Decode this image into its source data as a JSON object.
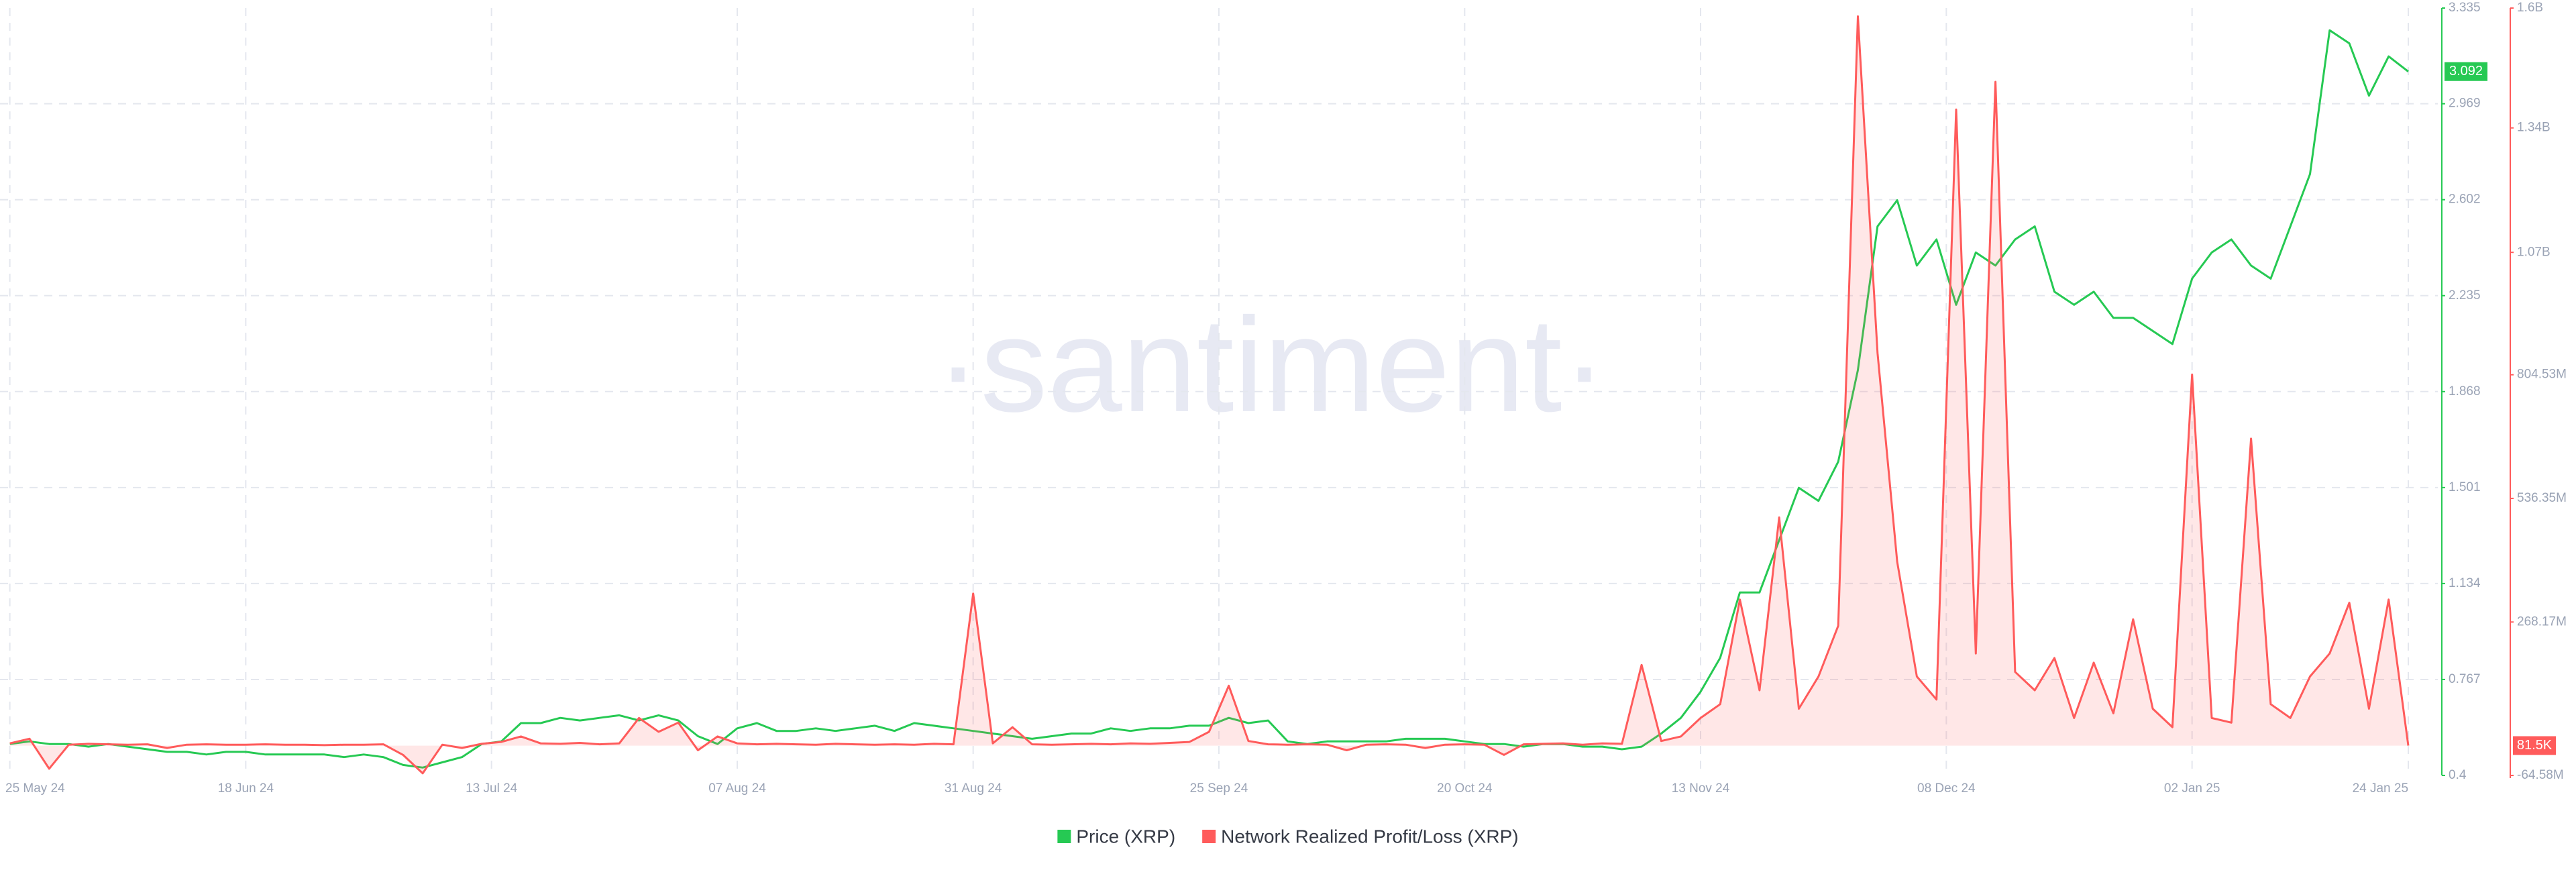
{
  "chart_data": {
    "type": "line",
    "watermark": "·santiment·",
    "x": [
      "2024-05-25",
      "2024-05-27",
      "2024-05-29",
      "2024-05-31",
      "2024-06-02",
      "2024-06-04",
      "2024-06-06",
      "2024-06-08",
      "2024-06-10",
      "2024-06-12",
      "2024-06-14",
      "2024-06-16",
      "2024-06-18",
      "2024-06-20",
      "2024-06-22",
      "2024-06-24",
      "2024-06-26",
      "2024-06-28",
      "2024-06-30",
      "2024-07-02",
      "2024-07-04",
      "2024-07-06",
      "2024-07-08",
      "2024-07-10",
      "2024-07-12",
      "2024-07-14",
      "2024-07-16",
      "2024-07-18",
      "2024-07-20",
      "2024-07-22",
      "2024-07-24",
      "2024-07-26",
      "2024-07-28",
      "2024-07-30",
      "2024-08-01",
      "2024-08-03",
      "2024-08-05",
      "2024-08-07",
      "2024-08-09",
      "2024-08-11",
      "2024-08-13",
      "2024-08-15",
      "2024-08-17",
      "2024-08-19",
      "2024-08-21",
      "2024-08-23",
      "2024-08-25",
      "2024-08-27",
      "2024-08-29",
      "2024-08-31",
      "2024-09-02",
      "2024-09-04",
      "2024-09-06",
      "2024-09-08",
      "2024-09-10",
      "2024-09-12",
      "2024-09-14",
      "2024-09-16",
      "2024-09-18",
      "2024-09-20",
      "2024-09-22",
      "2024-09-24",
      "2024-09-26",
      "2024-09-28",
      "2024-09-30",
      "2024-10-02",
      "2024-10-04",
      "2024-10-06",
      "2024-10-08",
      "2024-10-10",
      "2024-10-12",
      "2024-10-14",
      "2024-10-16",
      "2024-10-18",
      "2024-10-20",
      "2024-10-22",
      "2024-10-24",
      "2024-10-26",
      "2024-10-28",
      "2024-10-30",
      "2024-11-01",
      "2024-11-03",
      "2024-11-05",
      "2024-11-07",
      "2024-11-09",
      "2024-11-11",
      "2024-11-13",
      "2024-11-15",
      "2024-11-17",
      "2024-11-19",
      "2024-11-21",
      "2024-11-23",
      "2024-11-25",
      "2024-11-27",
      "2024-11-29",
      "2024-12-01",
      "2024-12-03",
      "2024-12-05",
      "2024-12-07",
      "2024-12-09",
      "2024-12-11",
      "2024-12-13",
      "2024-12-15",
      "2024-12-17",
      "2024-12-19",
      "2024-12-21",
      "2024-12-23",
      "2024-12-25",
      "2024-12-27",
      "2024-12-29",
      "2024-12-31",
      "2025-01-02",
      "2025-01-04",
      "2025-01-06",
      "2025-01-08",
      "2025-01-10",
      "2025-01-12",
      "2025-01-14",
      "2025-01-16",
      "2025-01-18",
      "2025-01-20",
      "2025-01-22",
      "2025-01-24"
    ],
    "xlim": [
      "2024-05-24",
      "2025-01-27"
    ],
    "xticks": [
      {
        "value": "2024-05-25",
        "label": "25 May 24"
      },
      {
        "value": "2024-06-18",
        "label": "18 Jun 24"
      },
      {
        "value": "2024-07-13",
        "label": "13 Jul 24"
      },
      {
        "value": "2024-08-07",
        "label": "07 Aug 24"
      },
      {
        "value": "2024-08-31",
        "label": "31 Aug 24"
      },
      {
        "value": "2024-09-25",
        "label": "25 Sep 24"
      },
      {
        "value": "2024-10-20",
        "label": "20 Oct 24"
      },
      {
        "value": "2024-11-13",
        "label": "13 Nov 24"
      },
      {
        "value": "2024-12-08",
        "label": "08 Dec 24"
      },
      {
        "value": "2025-01-02",
        "label": "02 Jan 25"
      },
      {
        "value": "2025-01-24",
        "label": "24 Jan 25"
      }
    ],
    "ylim": [
      0.4,
      3.335
    ],
    "yticks": [
      0.4,
      0.767,
      1.134,
      1.501,
      1.868,
      2.235,
      2.602,
      2.969,
      3.335
    ],
    "y2lim": [
      -64580000,
      1600000000
    ],
    "y2ticks": [
      {
        "value": -64580000,
        "label": "-64.58M"
      },
      {
        "value": 268170000,
        "label": "268.17M"
      },
      {
        "value": 536350000,
        "label": "536.35M"
      },
      {
        "value": 804530000,
        "label": "804.53M"
      },
      {
        "value": 1070000000,
        "label": "1.07B"
      },
      {
        "value": 1340000000,
        "label": "1.34B"
      },
      {
        "value": 1600000000,
        "label": "1.6B"
      }
    ],
    "grid": true,
    "legend": "bottom",
    "series": [
      {
        "name": "Price (XRP)",
        "color": "#26c953",
        "last_label": "3.092",
        "values": [
          0.52,
          0.53,
          0.52,
          0.52,
          0.51,
          0.52,
          0.51,
          0.5,
          0.49,
          0.49,
          0.48,
          0.49,
          0.49,
          0.48,
          0.48,
          0.48,
          0.48,
          0.47,
          0.48,
          0.47,
          0.44,
          0.43,
          0.45,
          0.47,
          0.52,
          0.53,
          0.6,
          0.6,
          0.62,
          0.61,
          0.62,
          0.63,
          0.61,
          0.63,
          0.61,
          0.55,
          0.52,
          0.58,
          0.6,
          0.57,
          0.57,
          0.58,
          0.57,
          0.58,
          0.59,
          0.57,
          0.6,
          0.59,
          0.58,
          0.57,
          0.56,
          0.55,
          0.54,
          0.55,
          0.56,
          0.56,
          0.58,
          0.57,
          0.58,
          0.58,
          0.59,
          0.59,
          0.62,
          0.6,
          0.61,
          0.53,
          0.52,
          0.53,
          0.53,
          0.53,
          0.53,
          0.54,
          0.54,
          0.54,
          0.53,
          0.52,
          0.52,
          0.51,
          0.52,
          0.52,
          0.51,
          0.51,
          0.5,
          0.51,
          0.56,
          0.62,
          0.72,
          0.85,
          1.1,
          1.1,
          1.3,
          1.5,
          1.45,
          1.6,
          1.95,
          2.5,
          2.6,
          2.35,
          2.45,
          2.2,
          2.4,
          2.35,
          2.45,
          2.5,
          2.25,
          2.2,
          2.25,
          2.15,
          2.15,
          2.1,
          2.05,
          2.3,
          2.4,
          2.45,
          2.35,
          2.3,
          2.5,
          2.7,
          3.25,
          3.2,
          3.0,
          3.15,
          3.092
        ]
      },
      {
        "name": "Network Realized Profit/Loss (XRP)",
        "color": "#ff5b5b",
        "axis": "y2",
        "last_label": "81.5K",
        "values": [
          5000000,
          15000000,
          -50000000,
          2000000,
          4000000,
          3000000,
          2000000,
          3000000,
          -5000000,
          2000000,
          3000000,
          2000000,
          2000000,
          3000000,
          2000000,
          2000000,
          1000000,
          2000000,
          2000000,
          3000000,
          -20000000,
          -60000000,
          2000000,
          -5000000,
          4000000,
          8000000,
          20000000,
          5000000,
          4000000,
          6000000,
          3000000,
          5000000,
          60000000,
          30000000,
          50000000,
          -10000000,
          20000000,
          5000000,
          3000000,
          4000000,
          3000000,
          2000000,
          4000000,
          3000000,
          2000000,
          3000000,
          2000000,
          4000000,
          3000000,
          330000000,
          5000000,
          40000000,
          3000000,
          2000000,
          3000000,
          4000000,
          3000000,
          5000000,
          4000000,
          6000000,
          8000000,
          30000000,
          130000000,
          10000000,
          3000000,
          2000000,
          3000000,
          2000000,
          -10000000,
          2000000,
          3000000,
          2000000,
          -5000000,
          2000000,
          3000000,
          2000000,
          -20000000,
          3000000,
          4000000,
          5000000,
          2000000,
          5000000,
          4000000,
          175000000,
          10000000,
          20000000,
          60000000,
          90000000,
          317000000,
          120000000,
          495000000,
          80000000,
          150000000,
          260000000,
          1582000000,
          852000000,
          399000000,
          150000000,
          100000000,
          1380000000,
          200000000,
          1440000000,
          160000000,
          120000000,
          190000000,
          60000000,
          180000000,
          70000000,
          274000000,
          80000000,
          40000000,
          805000000,
          60000000,
          50000000,
          666000000,
          90000000,
          60000000,
          150000000,
          200000000,
          310000000,
          80000000,
          317000000,
          81500
        ]
      }
    ]
  }
}
